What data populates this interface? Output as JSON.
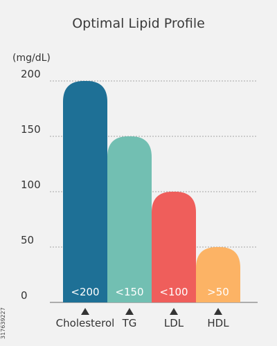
{
  "chart_data": {
    "type": "bar",
    "title": "Optimal Lipid Profile",
    "ylabel": "(mg/dL)",
    "ylim": [
      0,
      200
    ],
    "yticks": [
      "0",
      "50",
      "100",
      "150",
      "200"
    ],
    "grid": true,
    "categories": [
      "Cholesterol",
      "TG",
      "LDL",
      "HDL"
    ],
    "values": [
      200,
      150,
      100,
      50
    ],
    "bar_labels": [
      "<200",
      "<150",
      "<100",
      ">50"
    ],
    "colors": [
      "#1e7096",
      "#72bfb2",
      "#ef5e5b",
      "#fcb365"
    ],
    "marker": "▲"
  },
  "image_id_text": "317639227"
}
